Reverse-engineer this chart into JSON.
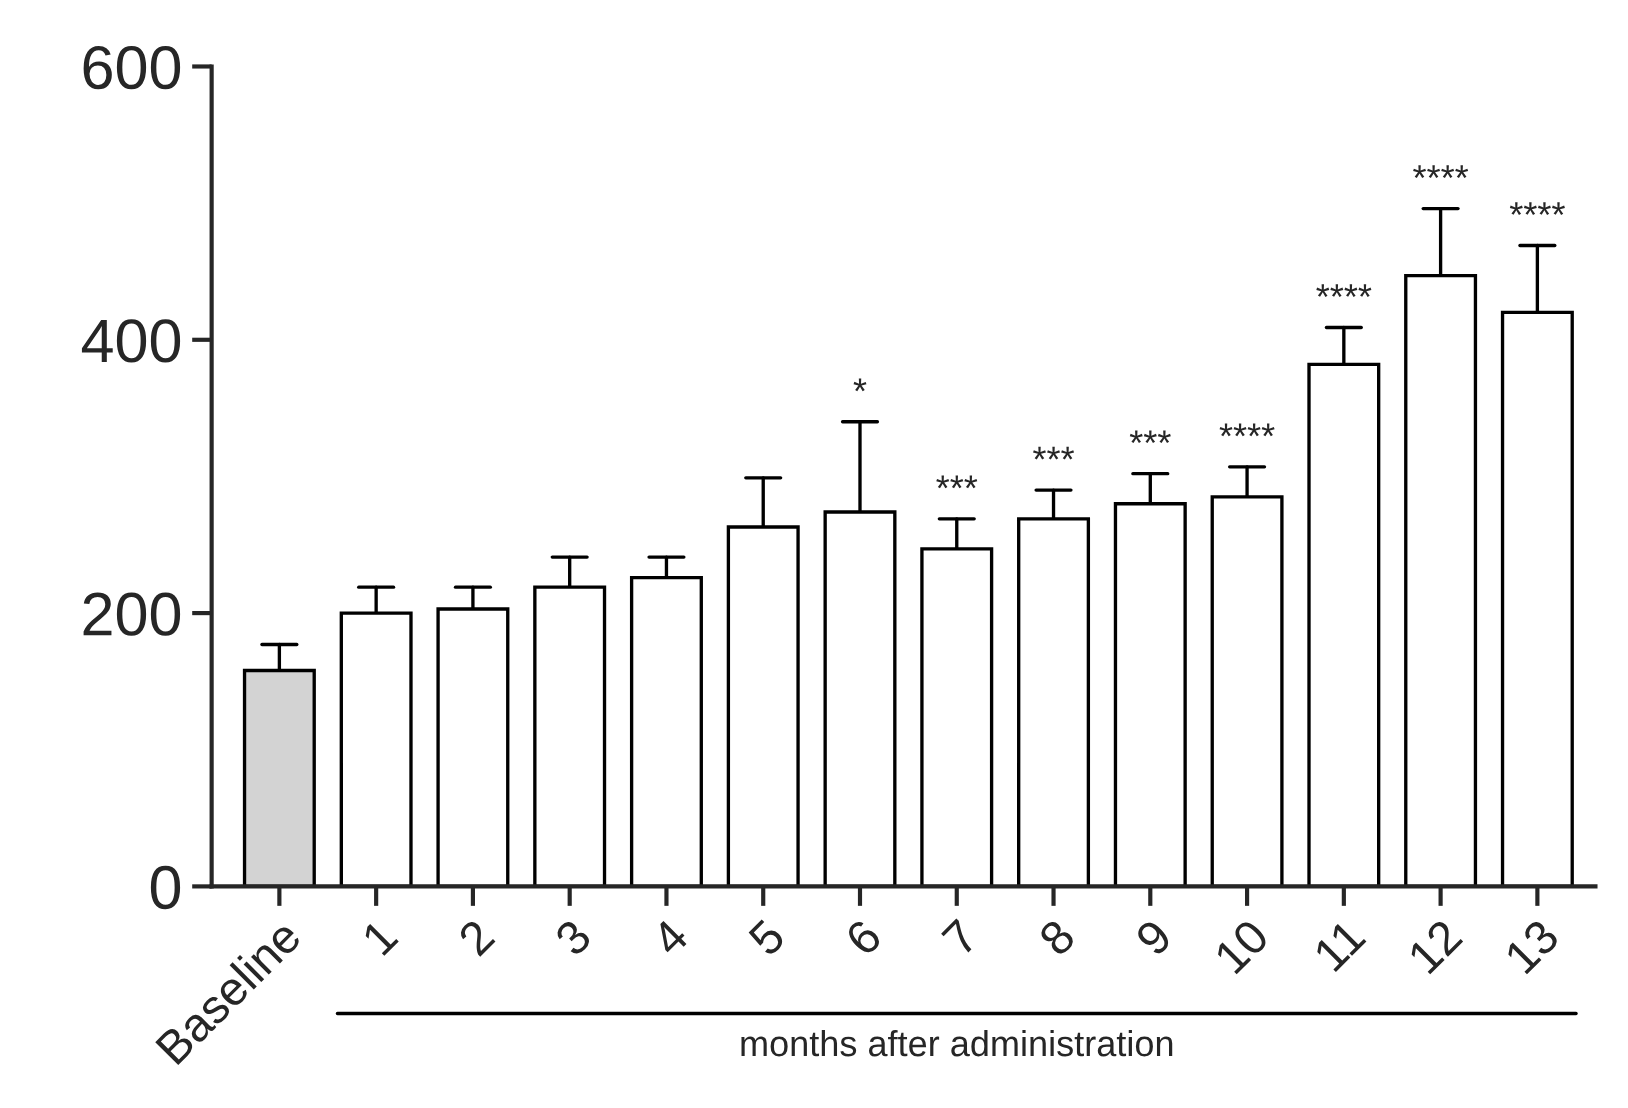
{
  "chart_data": {
    "type": "bar",
    "xlabel": "months after administration",
    "categories": [
      "Baseline",
      "1",
      "2",
      "3",
      "4",
      "5",
      "6",
      "7",
      "8",
      "9",
      "10",
      "11",
      "12",
      "13"
    ],
    "values": [
      158,
      200,
      203,
      219,
      226,
      263,
      274,
      247,
      269,
      280,
      285,
      382,
      447,
      420
    ],
    "colors": [
      "#d3d3d3",
      "#ffffff",
      "#ffffff",
      "#ffffff",
      "#ffffff",
      "#ffffff",
      "#ffffff",
      "#ffffff",
      "#ffffff",
      "#ffffff",
      "#ffffff",
      "#ffffff",
      "#ffffff",
      "#ffffff"
    ],
    "errors": [
      19,
      19,
      16,
      22,
      15,
      36,
      66,
      22,
      21,
      22,
      22,
      27,
      49,
      49
    ],
    "ylim": [
      0,
      600
    ],
    "yticks": [
      0,
      200,
      400,
      600
    ],
    "annotations": [
      {
        "text": "*",
        "x": "6",
        "y": 340
      },
      {
        "text": "***",
        "x": "7",
        "y": 269
      },
      {
        "text": "***",
        "x": "8",
        "y": 290
      },
      {
        "text": "***",
        "x": "9",
        "y": 302
      },
      {
        "text": "****",
        "x": "10",
        "y": 307
      },
      {
        "text": "****",
        "x": "11",
        "y": 409
      },
      {
        "text": "****",
        "x": "12",
        "y": 496
      },
      {
        "text": "****",
        "x": "13",
        "y": 469
      }
    ],
    "grid": false,
    "legend": false
  }
}
